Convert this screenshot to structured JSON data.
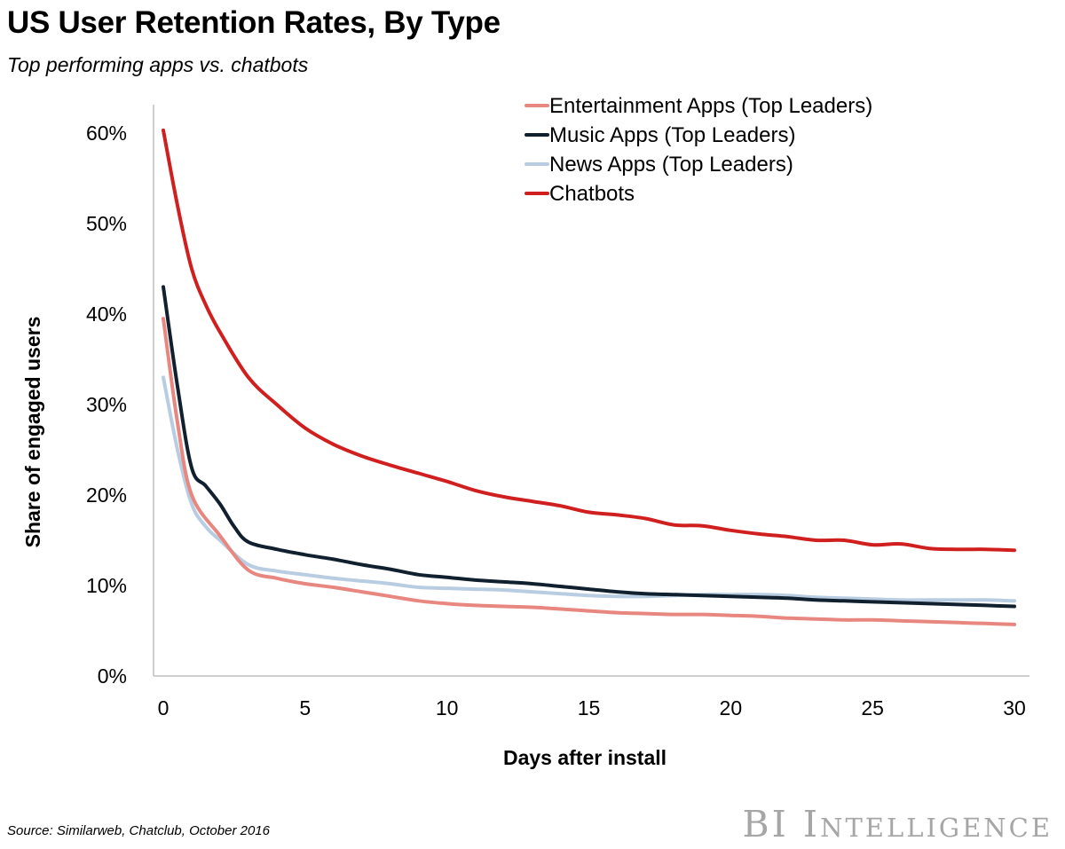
{
  "chart_data": {
    "type": "line",
    "title": "US User Retention Rates, By Type",
    "subtitle": "Top performing apps vs. chatbots",
    "xlabel": "Days after install",
    "ylabel": "Share of engaged users",
    "xlim": [
      0,
      30
    ],
    "ylim": [
      0,
      60
    ],
    "xticks": [
      0,
      5,
      10,
      15,
      20,
      25,
      30
    ],
    "yticks": [
      "0%",
      "10%",
      "20%",
      "30%",
      "40%",
      "50%",
      "60%"
    ],
    "grid": false,
    "legend_position": "top-right",
    "series": [
      {
        "name": "Entertainment Apps (Top Leaders)",
        "color": "#e8877f",
        "x": [
          0,
          0.5,
          1,
          2,
          3,
          4,
          5,
          6,
          7,
          8,
          9,
          10,
          11,
          12,
          13,
          14,
          15,
          16,
          17,
          18,
          19,
          20,
          21,
          22,
          23,
          24,
          25,
          26,
          27,
          28,
          29,
          30
        ],
        "y": [
          39.5,
          28,
          20,
          15.5,
          11.7,
          10.8,
          10.2,
          9.8,
          9.3,
          8.8,
          8.3,
          8.0,
          7.8,
          7.7,
          7.6,
          7.4,
          7.2,
          7.0,
          6.9,
          6.8,
          6.8,
          6.7,
          6.6,
          6.4,
          6.3,
          6.2,
          6.2,
          6.1,
          6.0,
          5.9,
          5.8,
          5.7
        ]
      },
      {
        "name": "Music Apps (Top Leaders)",
        "color": "#10202f",
        "x": [
          0,
          0.5,
          1,
          1.5,
          2,
          2.5,
          3,
          4,
          5,
          6,
          7,
          8,
          9,
          10,
          11,
          12,
          13,
          14,
          15,
          16,
          17,
          18,
          19,
          20,
          21,
          22,
          23,
          24,
          25,
          26,
          27,
          28,
          29,
          30
        ],
        "y": [
          43,
          32,
          23,
          21,
          19,
          16.5,
          14.8,
          14.0,
          13.4,
          12.9,
          12.3,
          11.8,
          11.2,
          10.9,
          10.6,
          10.4,
          10.2,
          9.9,
          9.6,
          9.3,
          9.1,
          9.0,
          8.9,
          8.8,
          8.7,
          8.6,
          8.4,
          8.3,
          8.2,
          8.1,
          8.0,
          7.9,
          7.8,
          7.7
        ]
      },
      {
        "name": "News Apps (Top Leaders)",
        "color": "#b8cde2",
        "x": [
          0,
          0.5,
          1,
          1.5,
          2,
          3,
          4,
          5,
          6,
          7,
          8,
          9,
          10,
          11,
          12,
          13,
          14,
          15,
          16,
          17,
          18,
          19,
          20,
          21,
          22,
          23,
          24,
          25,
          26,
          27,
          28,
          29,
          30
        ],
        "y": [
          33,
          25,
          19,
          16.5,
          15,
          12.3,
          11.6,
          11.2,
          10.8,
          10.5,
          10.2,
          9.8,
          9.7,
          9.6,
          9.5,
          9.3,
          9.1,
          8.9,
          8.8,
          8.8,
          8.9,
          9.0,
          9.0,
          9.0,
          8.9,
          8.7,
          8.6,
          8.5,
          8.4,
          8.4,
          8.4,
          8.4,
          8.3
        ]
      },
      {
        "name": "Chatbots",
        "color": "#d01f1f",
        "x": [
          0,
          0.5,
          1,
          1.5,
          2,
          3,
          4,
          5,
          6,
          7,
          8,
          9,
          10,
          11,
          12,
          13,
          14,
          15,
          16,
          17,
          18,
          19,
          20,
          21,
          22,
          23,
          24,
          25,
          26,
          27,
          28,
          29,
          30
        ],
        "y": [
          60.3,
          52,
          45,
          41,
          38,
          33,
          30,
          27.4,
          25.6,
          24.3,
          23.3,
          22.4,
          21.5,
          20.5,
          19.8,
          19.3,
          18.8,
          18.1,
          17.8,
          17.4,
          16.7,
          16.6,
          16.1,
          15.7,
          15.4,
          15.0,
          15.0,
          14.5,
          14.6,
          14.1,
          14.0,
          14.0,
          13.9
        ]
      }
    ]
  },
  "footer": {
    "source": "Source: Similarweb, Chatclub, October 2016",
    "brand_prefix": "BI",
    "brand_suffix": "Intelligence"
  }
}
